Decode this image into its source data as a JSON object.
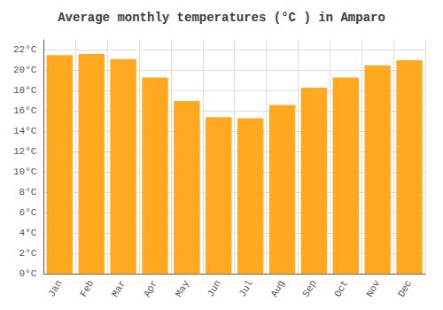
{
  "chart_data": {
    "type": "bar",
    "title": "Average monthly temperatures (°C ) in Amparo",
    "categories": [
      "Jan",
      "Feb",
      "Mar",
      "Apr",
      "May",
      "Jun",
      "Jul",
      "Aug",
      "Sep",
      "Oct",
      "Nov",
      "Dec"
    ],
    "values": [
      21.5,
      21.6,
      21.1,
      19.3,
      17.0,
      15.4,
      15.3,
      16.6,
      18.3,
      19.3,
      20.5,
      21.0
    ],
    "color": "#FFA820",
    "ylim": [
      0,
      23
    ],
    "yticks": [
      {
        "value": 0,
        "label": "0°C"
      },
      {
        "value": 2,
        "label": "2°C"
      },
      {
        "value": 4,
        "label": "4°C"
      },
      {
        "value": 6,
        "label": "6°C"
      },
      {
        "value": 8,
        "label": "8°C"
      },
      {
        "value": 10,
        "label": "10°C"
      },
      {
        "value": 12,
        "label": "12°C"
      },
      {
        "value": 14,
        "label": "14°C"
      },
      {
        "value": 16,
        "label": "16°C"
      },
      {
        "value": 18,
        "label": "18°C"
      },
      {
        "value": 20,
        "label": "20°C"
      },
      {
        "value": 22,
        "label": "22°C"
      }
    ],
    "grid": true
  }
}
